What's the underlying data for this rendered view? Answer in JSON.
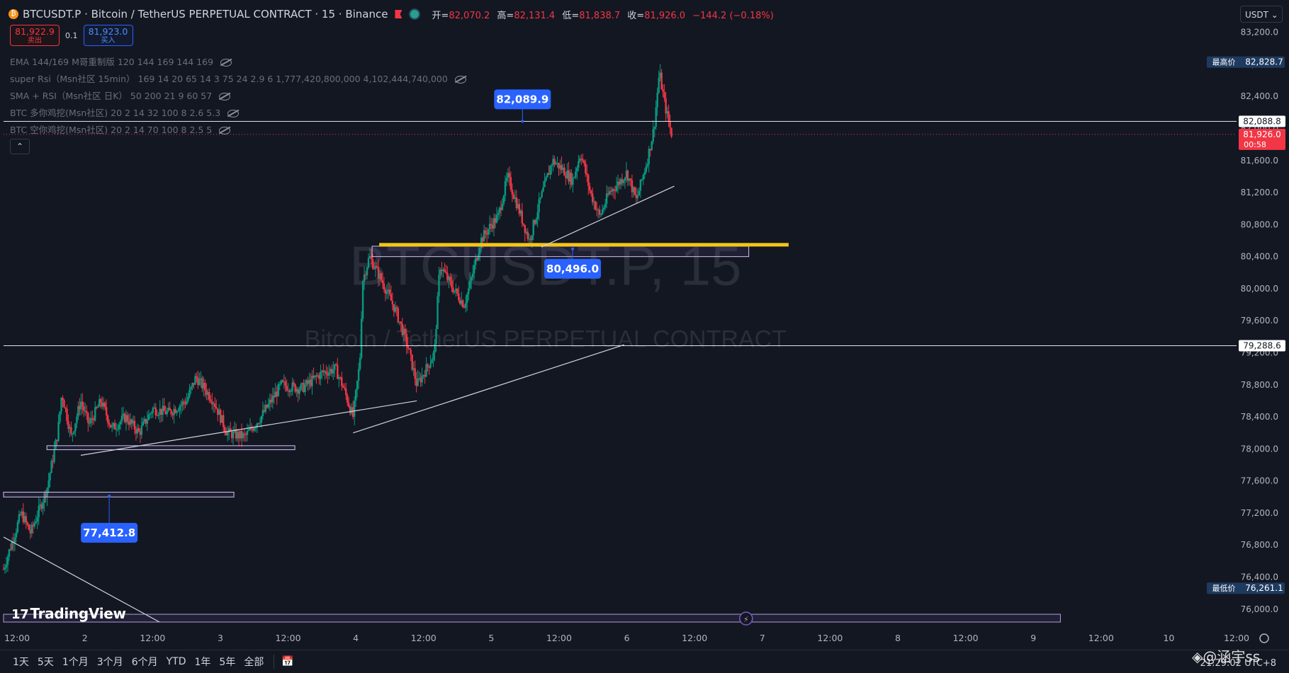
{
  "header": {
    "coin_badge": "₿",
    "title": "BTCUSDT.P · Bitcoin / TetherUS PERPETUAL CONTRACT · 15 · Binance",
    "ohlc": {
      "open_label": "开=",
      "open": "82,070.2",
      "high_label": "高=",
      "high": "82,131.4",
      "low_label": "低=",
      "low": "81,838.7",
      "close_label": "收=",
      "close": "81,926.0",
      "change": "−144.2 (−0.18%)"
    },
    "down_color": "#f23645"
  },
  "trade": {
    "sell_price": "81,922.9",
    "sell_label": "卖出",
    "spread": "0.1",
    "buy_price": "81,923.0",
    "buy_label": "买入"
  },
  "indicators": [
    {
      "label": "EMA 144/169 M哥重制版 120 144 169 144 169"
    },
    {
      "label": "super Rsi（Msn社区 15min） 169 14 20 65 14 3 75 24 2.9 6 1,777,420,800,000 4,102,444,740,000"
    },
    {
      "label": "SMA + RSI（Msn社区 日K） 50 200 21 9 60 57"
    },
    {
      "label": "BTC 多你鸡挖(Msn社区) 20 2 14 32 100 8 2.6 5.3"
    },
    {
      "label": "BTC 空你鸡挖(Msn社区) 20 2 14 70 100 8 2.5 5"
    }
  ],
  "collapse_icon": "⌃",
  "currency_selector": "USDT ⌄",
  "watermark": {
    "symbol": "BTCUSDT.P, 15",
    "name": "Bitcoin / TetherUS PERPETUAL CONTRACT"
  },
  "tv_logo": {
    "mark": "17",
    "text": "TradingView"
  },
  "range_buttons": [
    "1天",
    "5天",
    "1个月",
    "3个月",
    "6个月",
    "YTD",
    "1年",
    "5年",
    "全部"
  ],
  "calendar_icon": "📅",
  "clock": "21:29:02 UTC+8",
  "credit_watermark": "◈@涵宇ss",
  "chart_data": {
    "type": "candlestick",
    "y_axis": {
      "ticks": [
        83200,
        82800,
        82400,
        82000,
        81600,
        81200,
        80800,
        80400,
        80000,
        79600,
        79200,
        78800,
        78400,
        78000,
        77600,
        77200,
        76800,
        76400,
        76000
      ],
      "tick_labels": [
        "83,200.0",
        "82,800.0",
        "82,400.0",
        "82,000.0",
        "81,600.0",
        "81,200.0",
        "80,800.0",
        "80,400.0",
        "80,000.0",
        "79,600.0",
        "79,200.0",
        "78,800.0",
        "78,400.0",
        "78,000.0",
        "77,600.0",
        "77,200.0",
        "76,800.0",
        "76,400.0",
        "76,000.0"
      ],
      "range": [
        75830,
        83250
      ]
    },
    "x_axis": {
      "tick_labels": [
        "12:00",
        "2",
        "12:00",
        "3",
        "12:00",
        "4",
        "12:00",
        "5",
        "12:00",
        "6",
        "12:00",
        "7",
        "12:00",
        "8",
        "12:00",
        "9",
        "12:00",
        "10",
        "12:00"
      ],
      "tick_positions": [
        0.5,
        1,
        1.5,
        2,
        2.5,
        3,
        3.5,
        4,
        4.5,
        5,
        5.5,
        6,
        6.5,
        7,
        7.5,
        8,
        8.5,
        9,
        9.5
      ],
      "range": [
        0.4,
        9.5
      ],
      "unit": "day of month"
    },
    "price_path": [
      [
        0.4,
        76500
      ],
      [
        0.53,
        77200
      ],
      [
        0.6,
        76950
      ],
      [
        0.72,
        77500
      ],
      [
        0.8,
        78200
      ],
      [
        0.83,
        78700
      ],
      [
        0.9,
        78150
      ],
      [
        0.97,
        78600
      ],
      [
        1.03,
        78300
      ],
      [
        1.12,
        78600
      ],
      [
        1.2,
        78250
      ],
      [
        1.3,
        78400
      ],
      [
        1.4,
        78200
      ],
      [
        1.5,
        78500
      ],
      [
        1.62,
        78450
      ],
      [
        1.75,
        78600
      ],
      [
        1.82,
        78900
      ],
      [
        1.95,
        78600
      ],
      [
        2.05,
        78200
      ],
      [
        2.18,
        78150
      ],
      [
        2.3,
        78400
      ],
      [
        2.45,
        78800
      ],
      [
        2.6,
        78750
      ],
      [
        2.75,
        78950
      ],
      [
        2.85,
        79000
      ],
      [
        2.9,
        78800
      ],
      [
        2.98,
        78400
      ],
      [
        3.03,
        79100
      ],
      [
        3.05,
        80100
      ],
      [
        3.1,
        80400
      ],
      [
        3.22,
        80000
      ],
      [
        3.3,
        79700
      ],
      [
        3.38,
        79300
      ],
      [
        3.45,
        78800
      ],
      [
        3.52,
        79000
      ],
      [
        3.58,
        79200
      ],
      [
        3.62,
        80300
      ],
      [
        3.7,
        80050
      ],
      [
        3.8,
        79800
      ],
      [
        3.85,
        80100
      ],
      [
        3.92,
        80600
      ],
      [
        4.0,
        80800
      ],
      [
        4.05,
        80900
      ],
      [
        4.12,
        81400
      ],
      [
        4.2,
        81000
      ],
      [
        4.28,
        80600
      ],
      [
        4.36,
        81100
      ],
      [
        4.45,
        81600
      ],
      [
        4.52,
        81500
      ],
      [
        4.6,
        81350
      ],
      [
        4.66,
        81700
      ],
      [
        4.73,
        81200
      ],
      [
        4.8,
        80900
      ],
      [
        4.87,
        81200
      ],
      [
        4.93,
        81300
      ],
      [
        5.0,
        81450
      ],
      [
        5.07,
        81100
      ],
      [
        5.15,
        81600
      ],
      [
        5.2,
        82000
      ],
      [
        5.24,
        82700
      ],
      [
        5.28,
        82300
      ],
      [
        5.33,
        81926
      ]
    ],
    "session_high": {
      "label": "最高价",
      "value": "82,828.7",
      "price": 82828.7
    },
    "session_low": {
      "label": "最低价",
      "value": "76,261.1",
      "price": 76261.1
    },
    "last_price": {
      "value": "81,926.0",
      "countdown": "00:58",
      "price": 81926.0
    },
    "horizontal_lines": [
      {
        "price": 82088.8,
        "label": "82,088.8"
      },
      {
        "price": 79288.6,
        "label": "79,288.6"
      }
    ],
    "support_zone": {
      "price": 80496.0,
      "label": "80,496.0",
      "from_day": 3.12,
      "to_day": 5.9,
      "color": "#f5c518"
    },
    "callouts": [
      {
        "price": 82089.9,
        "label": "82,089.9",
        "day": 4.23
      },
      {
        "price": 80496.0,
        "label": "80,496.0",
        "day": 4.6
      },
      {
        "price": 77412.8,
        "label": "77,412.8",
        "day": 1.18
      }
    ],
    "zones": [
      {
        "from_day": 3.12,
        "to_day": 5.9,
        "top": 80530,
        "bottom": 80400
      },
      {
        "from_day": 0.72,
        "to_day": 2.55,
        "top": 78040,
        "bottom": 77990
      },
      {
        "from_day": 0.4,
        "to_day": 2.1,
        "top": 77460,
        "bottom": 77400
      }
    ],
    "trendlines": [
      {
        "from": [
          0.97,
          77920
        ],
        "to": [
          3.45,
          78600
        ]
      },
      {
        "from": [
          2.98,
          78200
        ],
        "to": [
          4.98,
          79300
        ]
      },
      {
        "from": [
          4.37,
          80520
        ],
        "to": [
          5.35,
          81280
        ]
      },
      {
        "from": [
          0.4,
          76900
        ],
        "to": [
          1.55,
          75840
        ]
      }
    ]
  }
}
